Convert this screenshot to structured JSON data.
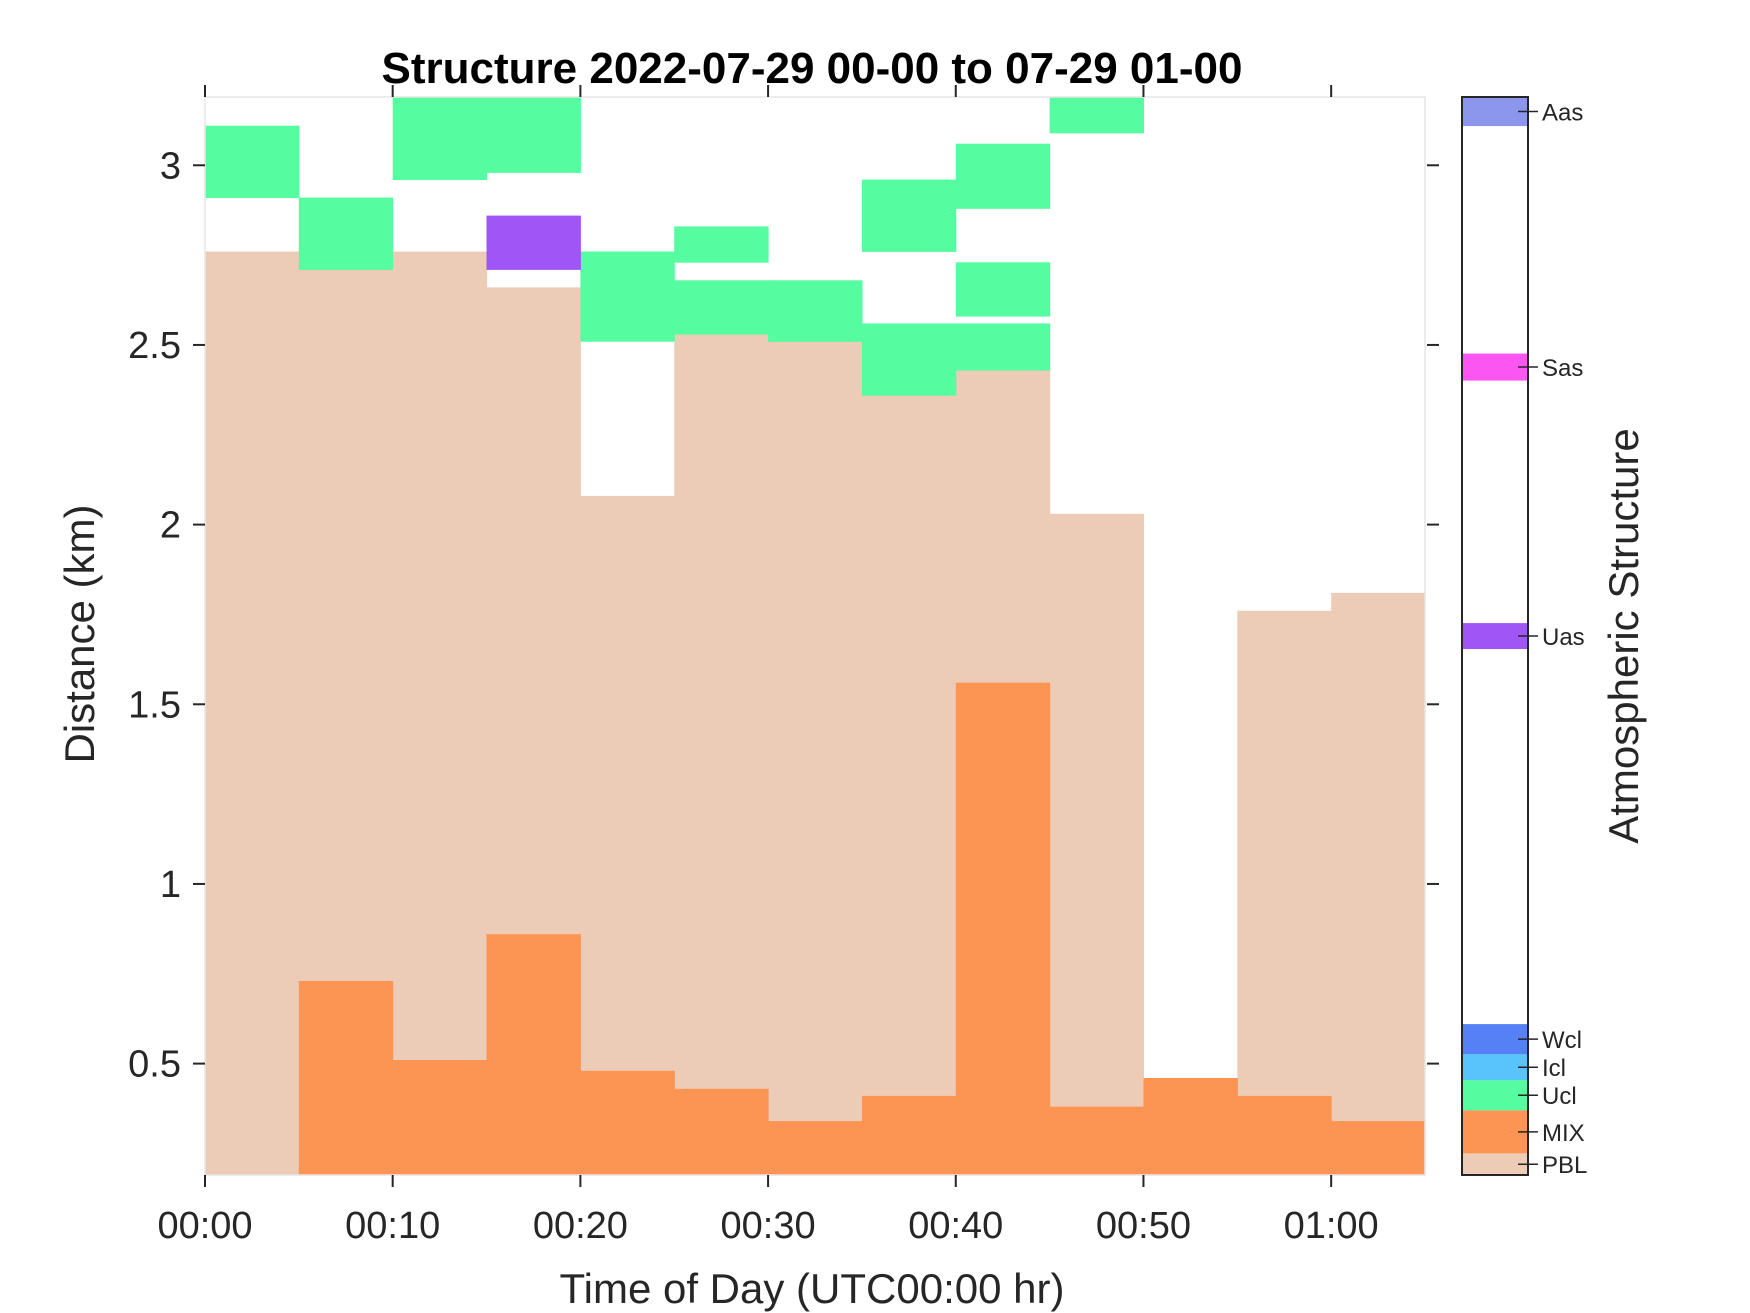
{
  "chart_data": {
    "type": "heatmap",
    "title": "Structure 2022-07-29 00-00 to 07-29 01-00",
    "xlabel": "Time of Day (UTC00:00 hr)",
    "ylabel": "Distance (km)",
    "x_unit": "minutes after 00:00",
    "xlim": [
      0,
      65
    ],
    "ylim": [
      0.19,
      3.19
    ],
    "x_ticks": [
      {
        "value": 0,
        "label": "00:00"
      },
      {
        "value": 10,
        "label": "00:10"
      },
      {
        "value": 20,
        "label": "00:20"
      },
      {
        "value": 30,
        "label": "00:30"
      },
      {
        "value": 40,
        "label": "00:40"
      },
      {
        "value": 50,
        "label": "00:50"
      },
      {
        "value": 60,
        "label": "01:00"
      }
    ],
    "y_ticks": [
      {
        "value": 0.5,
        "label": "0.5"
      },
      {
        "value": 1,
        "label": "1"
      },
      {
        "value": 1.5,
        "label": "1.5"
      },
      {
        "value": 2,
        "label": "2"
      },
      {
        "value": 2.5,
        "label": "2.5"
      },
      {
        "value": 3,
        "label": "3"
      }
    ],
    "categories": [
      "PBL",
      "MIX",
      "Ucl",
      "Icl",
      "Wcl",
      "Uas",
      "Sas",
      "Aas"
    ],
    "colors": {
      "PBL": "#ecccb6",
      "MIX": "#fc9453",
      "Ucl": "#56fca0",
      "Icl": "#58c4fb",
      "Wcl": "#5580f6",
      "Uas": "#a055f7",
      "Sas": "#fb56f2",
      "Aas": "#8c96ec"
    },
    "colorbar": {
      "label": "Atmospheric Structure",
      "entries": [
        {
          "label": "PBL",
          "from": 0.0,
          "to": 0.02
        },
        {
          "label": "MIX",
          "from": 0.02,
          "to": 0.06
        },
        {
          "label": "Ucl",
          "from": 0.06,
          "to": 0.088
        },
        {
          "label": "Icl",
          "from": 0.088,
          "to": 0.112
        },
        {
          "label": "Wcl",
          "from": 0.112,
          "to": 0.14
        },
        {
          "label": "Uas",
          "from": 0.488,
          "to": 0.512
        },
        {
          "label": "Sas",
          "from": 0.737,
          "to": 0.762
        },
        {
          "label": "Aas",
          "from": 0.973,
          "to": 1.0
        }
      ]
    },
    "cells": [
      {
        "cat": "PBL",
        "x0": 0,
        "x1": 5,
        "y0": 0.19,
        "y1": 2.76
      },
      {
        "cat": "PBL",
        "x0": 5,
        "x1": 10,
        "y0": 0.73,
        "y1": 2.76
      },
      {
        "cat": "PBL",
        "x0": 10,
        "x1": 15,
        "y0": 0.51,
        "y1": 2.76
      },
      {
        "cat": "PBL",
        "x0": 15,
        "x1": 20,
        "y0": 0.86,
        "y1": 2.66
      },
      {
        "cat": "PBL",
        "x0": 20,
        "x1": 25,
        "y0": 0.48,
        "y1": 2.08
      },
      {
        "cat": "PBL",
        "x0": 25,
        "x1": 30,
        "y0": 0.43,
        "y1": 2.53
      },
      {
        "cat": "PBL",
        "x0": 30,
        "x1": 35,
        "y0": 0.34,
        "y1": 2.51
      },
      {
        "cat": "PBL",
        "x0": 35,
        "x1": 40,
        "y0": 0.41,
        "y1": 2.36
      },
      {
        "cat": "PBL",
        "x0": 40,
        "x1": 45,
        "y0": 1.56,
        "y1": 2.43
      },
      {
        "cat": "PBL",
        "x0": 45,
        "x1": 50,
        "y0": 0.38,
        "y1": 2.03
      },
      {
        "cat": "PBL",
        "x0": 55,
        "x1": 60,
        "y0": 0.41,
        "y1": 1.76
      },
      {
        "cat": "PBL",
        "x0": 60,
        "x1": 65,
        "y0": 0.34,
        "y1": 1.81
      },
      {
        "cat": "MIX",
        "x0": 5,
        "x1": 10,
        "y0": 0.19,
        "y1": 0.73
      },
      {
        "cat": "MIX",
        "x0": 10,
        "x1": 15,
        "y0": 0.19,
        "y1": 0.51
      },
      {
        "cat": "MIX",
        "x0": 15,
        "x1": 20,
        "y0": 0.19,
        "y1": 0.86
      },
      {
        "cat": "MIX",
        "x0": 20,
        "x1": 25,
        "y0": 0.19,
        "y1": 0.48
      },
      {
        "cat": "MIX",
        "x0": 25,
        "x1": 30,
        "y0": 0.19,
        "y1": 0.43
      },
      {
        "cat": "MIX",
        "x0": 30,
        "x1": 35,
        "y0": 0.19,
        "y1": 0.34
      },
      {
        "cat": "MIX",
        "x0": 35,
        "x1": 40,
        "y0": 0.19,
        "y1": 0.41
      },
      {
        "cat": "MIX",
        "x0": 40,
        "x1": 45,
        "y0": 0.19,
        "y1": 1.56
      },
      {
        "cat": "MIX",
        "x0": 45,
        "x1": 50,
        "y0": 0.19,
        "y1": 0.38
      },
      {
        "cat": "MIX",
        "x0": 50,
        "x1": 55,
        "y0": 0.19,
        "y1": 0.46
      },
      {
        "cat": "MIX",
        "x0": 55,
        "x1": 60,
        "y0": 0.19,
        "y1": 0.41
      },
      {
        "cat": "MIX",
        "x0": 60,
        "x1": 65,
        "y0": 0.19,
        "y1": 0.34
      },
      {
        "cat": "Ucl",
        "x0": 0,
        "x1": 5,
        "y0": 2.91,
        "y1": 3.11
      },
      {
        "cat": "Ucl",
        "x0": 5,
        "x1": 10,
        "y0": 2.71,
        "y1": 2.91
      },
      {
        "cat": "Ucl",
        "x0": 10,
        "x1": 15,
        "y0": 2.96,
        "y1": 3.19
      },
      {
        "cat": "Ucl",
        "x0": 15,
        "x1": 20,
        "y0": 2.98,
        "y1": 3.19
      },
      {
        "cat": "Ucl",
        "x0": 20,
        "x1": 25,
        "y0": 2.51,
        "y1": 2.76
      },
      {
        "cat": "Ucl",
        "x0": 25,
        "x1": 30,
        "y0": 2.53,
        "y1": 2.68
      },
      {
        "cat": "Ucl",
        "x0": 25,
        "x1": 30,
        "y0": 2.73,
        "y1": 2.83
      },
      {
        "cat": "Ucl",
        "x0": 30,
        "x1": 35,
        "y0": 2.51,
        "y1": 2.68
      },
      {
        "cat": "Ucl",
        "x0": 35,
        "x1": 40,
        "y0": 2.36,
        "y1": 2.56
      },
      {
        "cat": "Ucl",
        "x0": 35,
        "x1": 40,
        "y0": 2.76,
        "y1": 2.96
      },
      {
        "cat": "Ucl",
        "x0": 40,
        "x1": 45,
        "y0": 2.43,
        "y1": 2.56
      },
      {
        "cat": "Ucl",
        "x0": 40,
        "x1": 45,
        "y0": 2.58,
        "y1": 2.73
      },
      {
        "cat": "Ucl",
        "x0": 40,
        "x1": 45,
        "y0": 2.88,
        "y1": 3.06
      },
      {
        "cat": "Ucl",
        "x0": 45,
        "x1": 50,
        "y0": 3.09,
        "y1": 3.19
      },
      {
        "cat": "Uas",
        "x0": 15,
        "x1": 20,
        "y0": 2.71,
        "y1": 2.86
      }
    ]
  }
}
